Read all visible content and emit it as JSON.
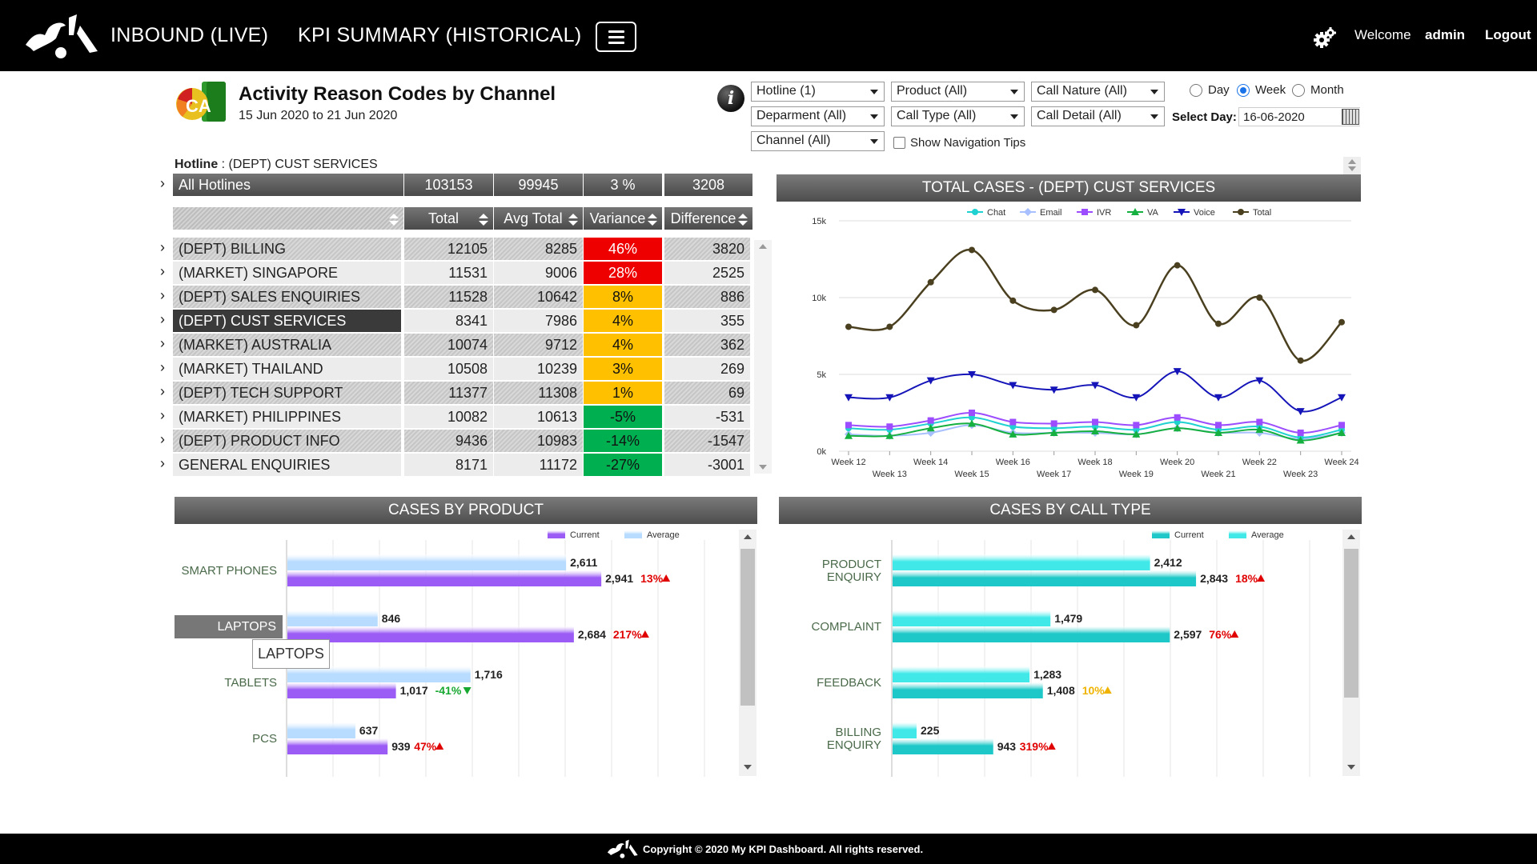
{
  "topbar": {
    "nav": [
      "INBOUND (LIVE)",
      "KPI SUMMARY (HISTORICAL)"
    ],
    "welcome": "Welcome",
    "user": "admin",
    "logout": "Logout"
  },
  "header": {
    "title": "Activity Reason Codes by Channel",
    "date_range": "15 Jun 2020 to 21 Jun 2020",
    "logo_text": "CA"
  },
  "filters": {
    "hotline": "Hotline (1)",
    "product": "Product (All)",
    "call_nature": "Call Nature (All)",
    "department": "Deparment (All)",
    "call_type": "Call Type (All)",
    "call_detail": "Call Detail (All)",
    "channel": "Channel (All)",
    "period_options": [
      "Day",
      "Week",
      "Month"
    ],
    "period_selected": "Week",
    "select_day_label": "Select Day:",
    "select_day_value": "16-06-2020",
    "nav_tips_label": "Show Navigation Tips",
    "nav_tips_checked": false
  },
  "hotline_label": {
    "key": "Hotline",
    "value": " : (DEPT) CUST SERVICES"
  },
  "table": {
    "summary": {
      "name": "All Hotlines",
      "total": "103153",
      "avg": "99945",
      "variance": "3 %",
      "difference": "3208"
    },
    "columns": [
      "Total",
      "Avg Total",
      "Variance",
      "Difference"
    ],
    "rows": [
      {
        "name": "(DEPT) BILLING",
        "total": "12105",
        "avg": "8285",
        "variance": "46%",
        "difference": "3820",
        "status": "red"
      },
      {
        "name": "(MARKET) SINGAPORE",
        "total": "11531",
        "avg": "9006",
        "variance": "28%",
        "difference": "2525",
        "status": "red"
      },
      {
        "name": "(DEPT) SALES ENQUIRIES",
        "total": "11528",
        "avg": "10642",
        "variance": "8%",
        "difference": "886",
        "status": "amber"
      },
      {
        "name": "(DEPT) CUST SERVICES",
        "total": "8341",
        "avg": "7986",
        "variance": "4%",
        "difference": "355",
        "status": "amber",
        "selected": true
      },
      {
        "name": "(MARKET) AUSTRALIA",
        "total": "10074",
        "avg": "9712",
        "variance": "4%",
        "difference": "362",
        "status": "amber"
      },
      {
        "name": "(MARKET) THAILAND",
        "total": "10508",
        "avg": "10239",
        "variance": "3%",
        "difference": "269",
        "status": "amber"
      },
      {
        "name": "(DEPT) TECH SUPPORT",
        "total": "11377",
        "avg": "11308",
        "variance": "1%",
        "difference": "69",
        "status": "amber"
      },
      {
        "name": "(MARKET) PHILIPPINES",
        "total": "10082",
        "avg": "10613",
        "variance": "-5%",
        "difference": "-531",
        "status": "green"
      },
      {
        "name": "(DEPT) PRODUCT INFO",
        "total": "9436",
        "avg": "10983",
        "variance": "-14%",
        "difference": "-1547",
        "status": "green"
      },
      {
        "name": "GENERAL ENQUIRIES",
        "total": "8171",
        "avg": "11172",
        "variance": "-27%",
        "difference": "-3001",
        "status": "green"
      }
    ]
  },
  "colors": {
    "red": "#ee0000",
    "amber": "#ffc000",
    "green": "#00b050",
    "chat": "#1fd1d1",
    "email": "#a8c0ff",
    "ivr": "#9b4dff",
    "va": "#16b040",
    "voice": "#1414b8",
    "total": "#4a4020",
    "product_current": "#9b5cf5",
    "product_average": "#b8dcff",
    "calltype_current": "#1fc8c8",
    "calltype_average": "#40e8e8",
    "up": "#e00000",
    "down": "#16a830",
    "neutral": "#f0b400"
  },
  "chart_data": [
    {
      "type": "line",
      "title": "TOTAL CASES - (DEPT) CUST SERVICES",
      "x": [
        "Week 12",
        "Week 13",
        "Week 14",
        "Week 15",
        "Week 16",
        "Week 17",
        "Week 18",
        "Week 19",
        "Week 20",
        "Week 21",
        "Week 22",
        "Week 23",
        "Week 24"
      ],
      "y_ticks": [
        "0k",
        "5k",
        "10k",
        "15k"
      ],
      "ylim": [
        0,
        15000
      ],
      "legend_position": "top",
      "grid": true,
      "series": [
        {
          "name": "Chat",
          "values": [
            1500,
            1400,
            1800,
            2200,
            1600,
            1500,
            1600,
            1400,
            1900,
            1400,
            1600,
            900,
            1400
          ]
        },
        {
          "name": "Email",
          "values": [
            1100,
            1000,
            1200,
            1700,
            1200,
            1200,
            1200,
            1100,
            1500,
            1200,
            1200,
            800,
            1200
          ]
        },
        {
          "name": "IVR",
          "values": [
            1700,
            1600,
            2000,
            2500,
            1900,
            1800,
            1900,
            1700,
            2200,
            1700,
            1900,
            1200,
            1700
          ]
        },
        {
          "name": "VA",
          "values": [
            1000,
            1000,
            1500,
            1800,
            1100,
            1200,
            1300,
            1100,
            1500,
            1200,
            1400,
            700,
            1200
          ]
        },
        {
          "name": "Voice",
          "values": [
            3500,
            3500,
            4600,
            5000,
            4300,
            4000,
            4300,
            3500,
            5200,
            3500,
            4600,
            2600,
            3500
          ]
        },
        {
          "name": "Total",
          "values": [
            8100,
            8100,
            11000,
            13100,
            9800,
            9200,
            10500,
            8200,
            12100,
            8300,
            10000,
            5900,
            8400
          ]
        }
      ]
    },
    {
      "type": "bar",
      "title": "CASES BY PRODUCT",
      "orientation": "horizontal",
      "categories": [
        "SMART PHONES",
        "LAPTOPS",
        "TABLETS",
        "PCS"
      ],
      "series": [
        {
          "name": "Average",
          "values": [
            2611,
            846,
            1716,
            637
          ]
        },
        {
          "name": "Current",
          "values": [
            2941,
            2684,
            1017,
            939
          ]
        }
      ],
      "value_labels": {
        "Average": [
          "2,611",
          "846",
          "1,716",
          "637"
        ],
        "Current": [
          "2,941",
          "2,684",
          "1,017",
          "939"
        ]
      },
      "change": [
        "13%",
        "217%",
        "-41%",
        "47%"
      ],
      "change_dir": [
        "up",
        "up",
        "down",
        "up"
      ],
      "xlim": [
        0,
        3600
      ],
      "legend_position": "top-right"
    },
    {
      "type": "bar",
      "title": "CASES BY CALL TYPE",
      "orientation": "horizontal",
      "categories": [
        "PRODUCT ENQUIRY",
        "COMPLAINT",
        "FEEDBACK",
        "BILLING ENQUIRY"
      ],
      "series": [
        {
          "name": "Average",
          "values": [
            2412,
            1479,
            1283,
            225
          ]
        },
        {
          "name": "Current",
          "values": [
            2843,
            2597,
            1408,
            943
          ]
        }
      ],
      "value_labels": {
        "Average": [
          "2,412",
          "1,479",
          "1,283",
          "225"
        ],
        "Current": [
          "2,843",
          "2,597",
          "1,408",
          "943"
        ]
      },
      "change": [
        "18%",
        "76%",
        "10%",
        "319%"
      ],
      "change_dir": [
        "up",
        "up",
        "neutral",
        "up"
      ],
      "xlim": [
        0,
        3600
      ],
      "legend_position": "top-right"
    }
  ],
  "hover": {
    "tag": "LAPTOPS",
    "tooltip": "LAPTOPS"
  },
  "footer": {
    "text": "Copyright © 2020 My KPI Dashboard. All rights reserved."
  }
}
